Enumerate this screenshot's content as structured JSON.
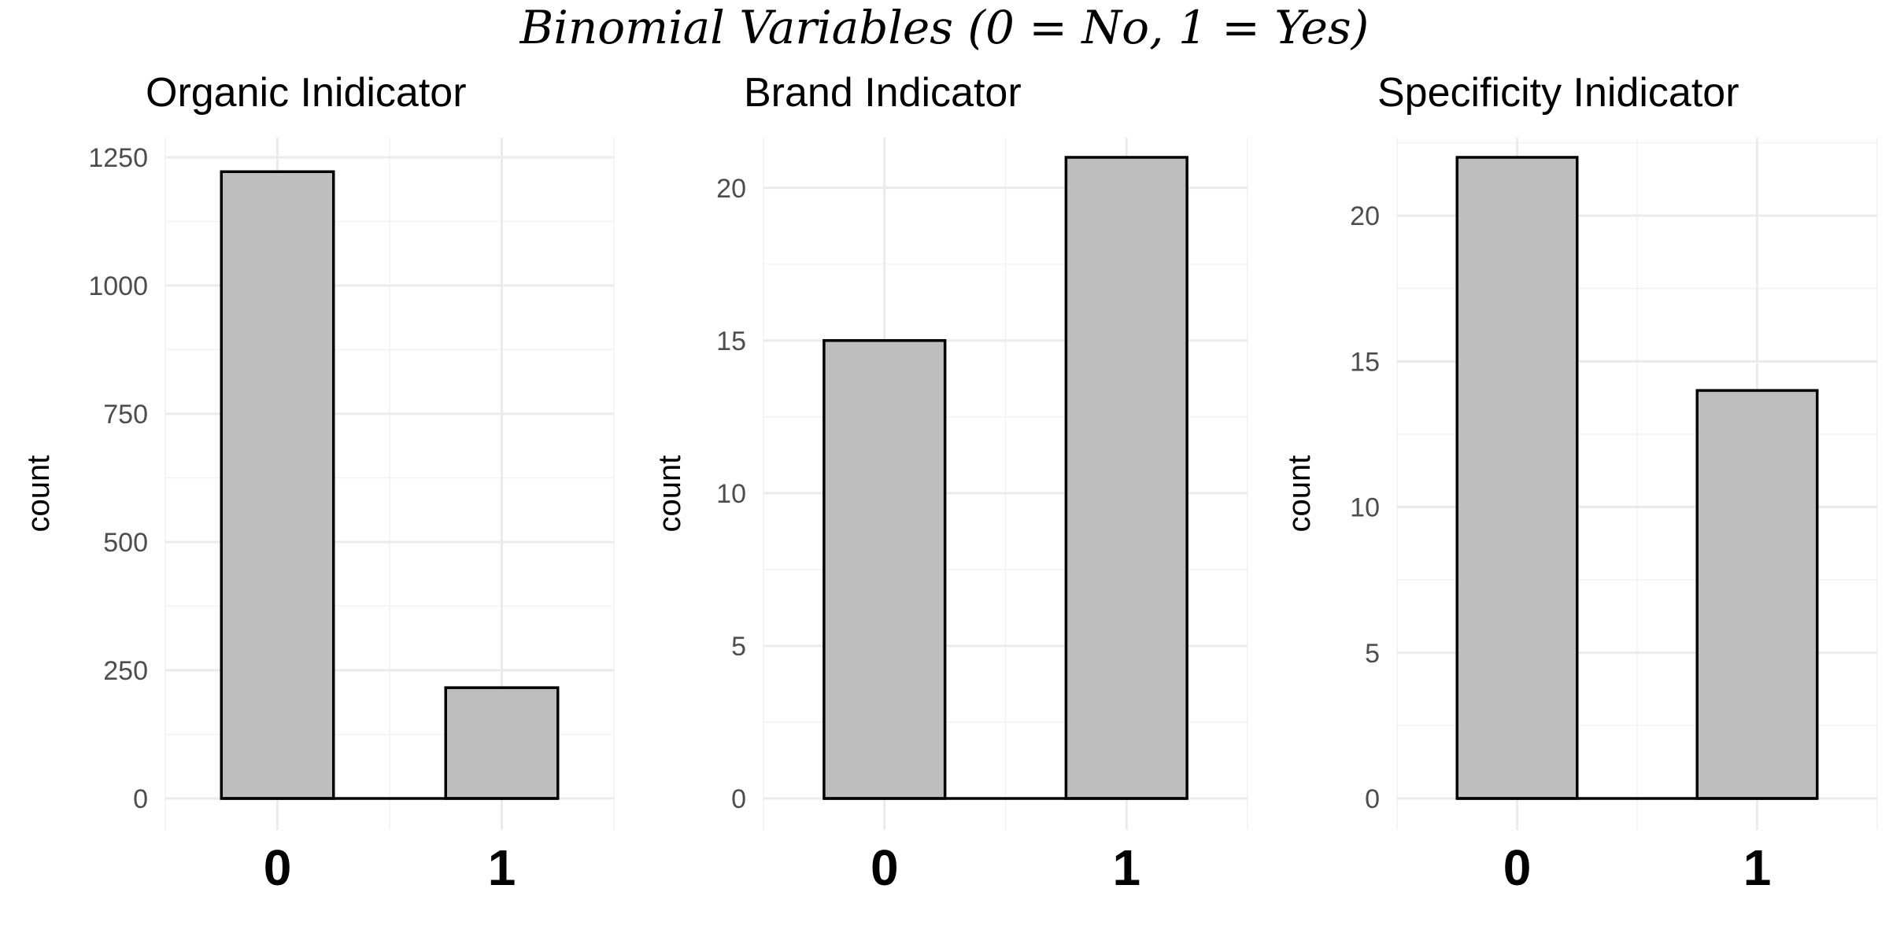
{
  "title": "Binomial Variables (0 = No, 1 = Yes)",
  "chart_data": [
    {
      "type": "bar",
      "title": "Organic Inidicator",
      "xlabel": "",
      "ylabel": "count",
      "categories": [
        "0",
        "1"
      ],
      "values": [
        1222,
        216
      ],
      "yticks": [
        0,
        250,
        500,
        750,
        1000,
        1250
      ],
      "ylim": [
        0,
        1250
      ],
      "grid": true,
      "bar_fill": "#bebebe",
      "bar_stroke": "#000000"
    },
    {
      "type": "bar",
      "title": "Brand Indicator",
      "xlabel": "",
      "ylabel": "count",
      "categories": [
        "0",
        "1"
      ],
      "values": [
        15,
        21
      ],
      "yticks": [
        0,
        5,
        10,
        15,
        20
      ],
      "ylim": [
        0,
        21
      ],
      "grid": true,
      "bar_fill": "#bebebe",
      "bar_stroke": "#000000"
    },
    {
      "type": "bar",
      "title": "Specificity Inidicator",
      "xlabel": "",
      "ylabel": "count",
      "categories": [
        "0",
        "1"
      ],
      "values": [
        22,
        14
      ],
      "yticks": [
        0,
        5,
        10,
        15,
        20
      ],
      "ylim": [
        0,
        22
      ],
      "grid": true,
      "bar_fill": "#bebebe",
      "bar_stroke": "#000000"
    }
  ]
}
